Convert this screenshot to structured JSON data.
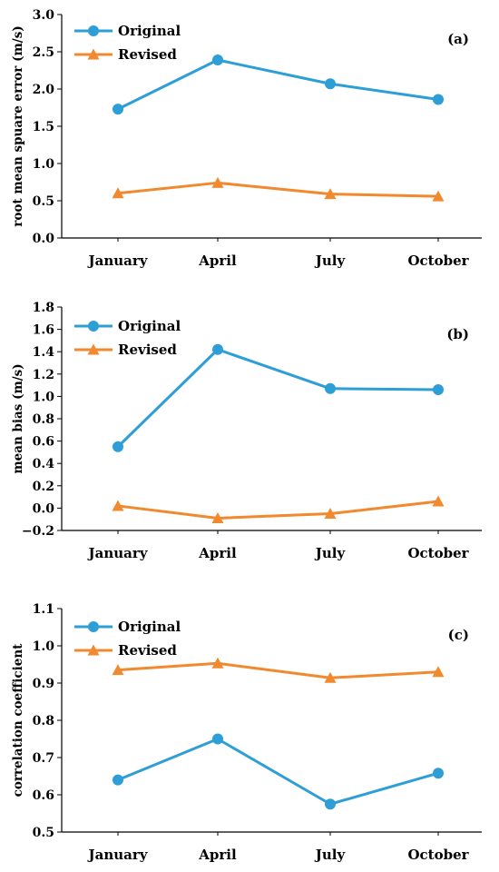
{
  "chart_data": [
    {
      "type": "line",
      "panel_label": "(a)",
      "ylabel": "root mean spuare error (m/s)",
      "categories": [
        "January",
        "April",
        "July",
        "October"
      ],
      "ylim": [
        0,
        3.0
      ],
      "yticks": [
        "0.0",
        "0.5",
        "1.0",
        "1.5",
        "2.0",
        "2.5",
        "3.0"
      ],
      "legend_position": "top-left",
      "grid": false,
      "series": [
        {
          "name": "Original",
          "values": [
            1.73,
            2.39,
            2.07,
            1.86
          ]
        },
        {
          "name": "Revised",
          "values": [
            0.6,
            0.74,
            0.59,
            0.56
          ]
        }
      ]
    },
    {
      "type": "line",
      "panel_label": "(b)",
      "ylabel": "mean bias (m/s)",
      "categories": [
        "January",
        "April",
        "July",
        "October"
      ],
      "ylim": [
        -0.2,
        1.8
      ],
      "yticks": [
        "−0.2",
        "0.0",
        "0.2",
        "0.4",
        "0.6",
        "0.8",
        "1.0",
        "1.2",
        "1.4",
        "1.6",
        "1.8"
      ],
      "legend_position": "top-left",
      "grid": false,
      "series": [
        {
          "name": "Original",
          "values": [
            0.55,
            1.42,
            1.07,
            1.06
          ]
        },
        {
          "name": "Revised",
          "values": [
            0.02,
            -0.09,
            -0.05,
            0.06
          ]
        }
      ]
    },
    {
      "type": "line",
      "panel_label": "(c)",
      "ylabel": "correlation coefficient",
      "categories": [
        "January",
        "April",
        "July",
        "October"
      ],
      "ylim": [
        0.5,
        1.1
      ],
      "yticks": [
        "0.5",
        "0.6",
        "0.7",
        "0.8",
        "0.9",
        "1.0",
        "1.1"
      ],
      "legend_position": "top-left",
      "grid": false,
      "series": [
        {
          "name": "Original",
          "values": [
            0.64,
            0.75,
            0.575,
            0.658
          ]
        },
        {
          "name": "Revised",
          "values": [
            0.935,
            0.953,
            0.914,
            0.93
          ]
        }
      ]
    }
  ],
  "colors": {
    "original": "#2e9ed6",
    "revised": "#f1892e",
    "axis": "#000000"
  }
}
